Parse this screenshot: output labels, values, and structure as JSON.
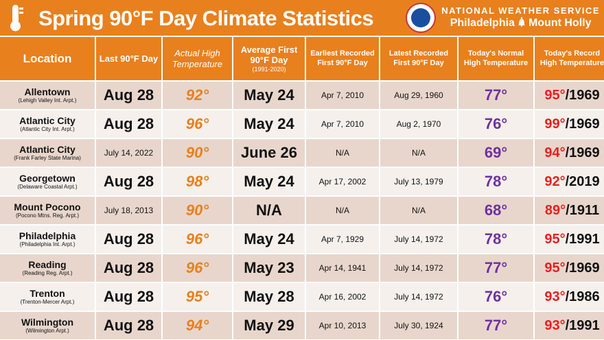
{
  "header": {
    "title": "Spring 90°F Day Climate Statistics",
    "org": "NATIONAL WEATHER SERVICE",
    "office_left": "Philadelphia",
    "office_right": "Mount Holly",
    "accent": "#E8801E"
  },
  "columns": [
    {
      "label": "Location"
    },
    {
      "label": "Last 90°F Day"
    },
    {
      "label": "Actual High Temperature"
    },
    {
      "label": "Average First 90°F Day",
      "note": "(1991-2020)"
    },
    {
      "label": "Earliest Recorded First 90°F Day"
    },
    {
      "label": "Latest Recorded First 90°F Day"
    },
    {
      "label": "Today's Normal High Temperature"
    },
    {
      "label": "Today's Record High Temperature"
    }
  ],
  "rows": [
    {
      "name": "Allentown",
      "site": "(Lehigh Valley Int. Arpt.)",
      "last": "Aug 28",
      "actual": "92°",
      "avg": "May 24",
      "earliest": "Apr 7, 2010",
      "latest": "Aug 29, 1960",
      "normal": "77°",
      "rec_temp": "95°",
      "rec_year": "/1969"
    },
    {
      "name": "Atlantic City",
      "site": "(Atlantic City Int. Arpt.)",
      "last": "Aug 28",
      "actual": "96°",
      "avg": "May 24",
      "earliest": "Apr 7, 2010",
      "latest": "Aug 2, 1970",
      "normal": "76°",
      "rec_temp": "99°",
      "rec_year": "/1969"
    },
    {
      "name": "Atlantic City",
      "site": "(Frank Farley State Marina)",
      "last": "July 14, 2022",
      "actual": "90°",
      "avg": "June 26",
      "earliest": "N/A",
      "latest": "N/A",
      "normal": "69°",
      "rec_temp": "94°",
      "rec_year": "/1969"
    },
    {
      "name": "Georgetown",
      "site": "(Delaware Coastal Arpt.)",
      "last": "Aug 28",
      "actual": "98°",
      "avg": "May 24",
      "earliest": "Apr 17, 2002",
      "latest": "July 13, 1979",
      "normal": "78°",
      "rec_temp": "92°",
      "rec_year": "/2019"
    },
    {
      "name": "Mount Pocono",
      "site": "(Pocono Mtns. Reg. Arpt.)",
      "last": "July 18, 2013",
      "actual": "90°",
      "avg": "N/A",
      "earliest": "N/A",
      "latest": "N/A",
      "normal": "68°",
      "rec_temp": "89°",
      "rec_year": "/1911"
    },
    {
      "name": "Philadelphia",
      "site": "(Philadelphia Int. Arpt.)",
      "last": "Aug 28",
      "actual": "96°",
      "avg": "May 24",
      "earliest": "Apr 7, 1929",
      "latest": "July 14, 1972",
      "normal": "78°",
      "rec_temp": "95°",
      "rec_year": "/1991"
    },
    {
      "name": "Reading",
      "site": "(Reading Reg. Arpt.)",
      "last": "Aug 28",
      "actual": "96°",
      "avg": "May 23",
      "earliest": "Apr 14, 1941",
      "latest": "July 14, 1972",
      "normal": "77°",
      "rec_temp": "95°",
      "rec_year": "/1969"
    },
    {
      "name": "Trenton",
      "site": "(Trenton-Mercer Arpt.)",
      "last": "Aug 28",
      "actual": "95°",
      "avg": "May 28",
      "earliest": "Apr 16, 2002",
      "latest": "July 14, 1972",
      "normal": "76°",
      "rec_temp": "93°",
      "rec_year": "/1986"
    },
    {
      "name": "Wilmington",
      "site": "(Wilmington Arpt.)",
      "last": "Aug 28",
      "actual": "94°",
      "avg": "May 29",
      "earliest": "Apr 10, 2013",
      "latest": "July 30, 1924",
      "normal": "77°",
      "rec_temp": "93°",
      "rec_year": "/1991"
    }
  ]
}
